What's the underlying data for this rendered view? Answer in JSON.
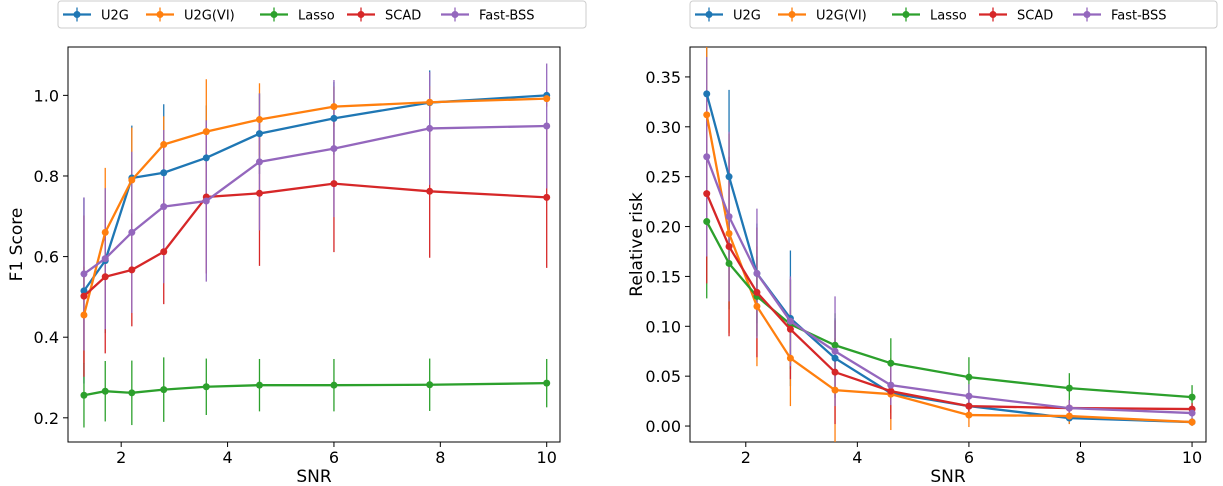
{
  "chart_data": [
    {
      "type": "line",
      "title": "",
      "xlabel": "SNR",
      "ylabel": "F1 Score",
      "xlim": [
        1.0,
        10.25
      ],
      "ylim": [
        0.14,
        1.12
      ],
      "xticks": [
        2,
        4,
        6,
        8,
        10
      ],
      "yticks": [
        0.2,
        0.4,
        0.6,
        0.8,
        1.0
      ],
      "ytick_labels": [
        "0.2",
        "0.4",
        "0.6",
        "0.8",
        "1.0"
      ],
      "legend_position": "top-center",
      "x": [
        1.3,
        1.7,
        2.2,
        2.8,
        3.6,
        4.6,
        6.0,
        7.8,
        10.0
      ],
      "series": [
        {
          "name": "U2G",
          "color": "#1f77b4",
          "values": [
            0.515,
            0.59,
            0.795,
            0.808,
            0.845,
            0.905,
            0.943,
            0.982,
            1.0
          ],
          "errors": [
            0.23,
            0.18,
            0.13,
            0.17,
            0.13,
            0.1,
            0.09,
            0.08,
            0.0
          ]
        },
        {
          "name": "U2G(VI)",
          "color": "#ff7f0e",
          "values": [
            0.455,
            0.66,
            0.79,
            0.878,
            0.91,
            0.94,
            0.972,
            0.983,
            0.992
          ],
          "errors": [
            0.12,
            0.16,
            0.13,
            0.07,
            0.13,
            0.09,
            0.05,
            0.04,
            0.02
          ]
        },
        {
          "name": "Lasso",
          "color": "#2ca02c",
          "values": [
            0.256,
            0.266,
            0.262,
            0.27,
            0.277,
            0.281,
            0.281,
            0.282,
            0.286
          ],
          "errors": [
            0.08,
            0.075,
            0.08,
            0.08,
            0.07,
            0.065,
            0.065,
            0.065,
            0.06
          ]
        },
        {
          "name": "SCAD",
          "color": "#d62728",
          "values": [
            0.502,
            0.55,
            0.567,
            0.612,
            0.748,
            0.757,
            0.781,
            0.762,
            0.747
          ],
          "errors": [
            0.2,
            0.19,
            0.14,
            0.13,
            0.19,
            0.18,
            0.17,
            0.165,
            0.175
          ]
        },
        {
          "name": "Fast-BSS",
          "color": "#9467bd",
          "values": [
            0.557,
            0.595,
            0.66,
            0.724,
            0.738,
            0.835,
            0.868,
            0.918,
            0.924
          ],
          "errors": [
            0.19,
            0.175,
            0.2,
            0.19,
            0.2,
            0.17,
            0.17,
            0.14,
            0.155
          ]
        }
      ]
    },
    {
      "type": "line",
      "title": "",
      "xlabel": "SNR",
      "ylabel": "Relative risk",
      "xlim": [
        1.0,
        10.25
      ],
      "ylim": [
        -0.016,
        0.38
      ],
      "xticks": [
        2,
        4,
        6,
        8,
        10
      ],
      "yticks": [
        0.0,
        0.05,
        0.1,
        0.15,
        0.2,
        0.25,
        0.3,
        0.35
      ],
      "ytick_labels": [
        "0.00",
        "0.05",
        "0.10",
        "0.15",
        "0.20",
        "0.25",
        "0.30",
        "0.35"
      ],
      "legend_position": "top-center",
      "x": [
        1.3,
        1.7,
        2.2,
        2.8,
        3.6,
        4.6,
        6.0,
        7.8,
        10.0
      ],
      "series": [
        {
          "name": "U2G",
          "color": "#1f77b4",
          "values": [
            0.333,
            0.25,
            0.153,
            0.108,
            0.068,
            0.033,
            0.02,
            0.008,
            0.004
          ],
          "errors": [
            0.07,
            0.087,
            0.05,
            0.068,
            0.04,
            0.02,
            0.01,
            0.006,
            0.003
          ]
        },
        {
          "name": "U2G(VI)",
          "color": "#ff7f0e",
          "values": [
            0.312,
            0.193,
            0.12,
            0.068,
            0.036,
            0.032,
            0.011,
            0.01,
            0.004
          ],
          "errors": [
            0.09,
            0.1,
            0.06,
            0.048,
            0.052,
            0.036,
            0.012,
            0.008,
            0.004
          ]
        },
        {
          "name": "Lasso",
          "color": "#2ca02c",
          "values": [
            0.205,
            0.163,
            0.13,
            0.102,
            0.081,
            0.063,
            0.049,
            0.038,
            0.029
          ],
          "errors": [
            0.077,
            0.046,
            0.04,
            0.045,
            0.032,
            0.025,
            0.02,
            0.015,
            0.012
          ]
        },
        {
          "name": "SCAD",
          "color": "#d62728",
          "values": [
            0.233,
            0.18,
            0.134,
            0.097,
            0.054,
            0.035,
            0.02,
            0.018,
            0.017
          ],
          "errors": [
            0.09,
            0.09,
            0.065,
            0.05,
            0.052,
            0.028,
            0.01,
            0.008,
            0.006
          ]
        },
        {
          "name": "Fast-BSS",
          "color": "#9467bd",
          "values": [
            0.27,
            0.21,
            0.153,
            0.105,
            0.075,
            0.041,
            0.03,
            0.018,
            0.013
          ],
          "errors": [
            0.1,
            0.085,
            0.065,
            0.045,
            0.055,
            0.02,
            0.012,
            0.008,
            0.006
          ]
        }
      ]
    }
  ]
}
